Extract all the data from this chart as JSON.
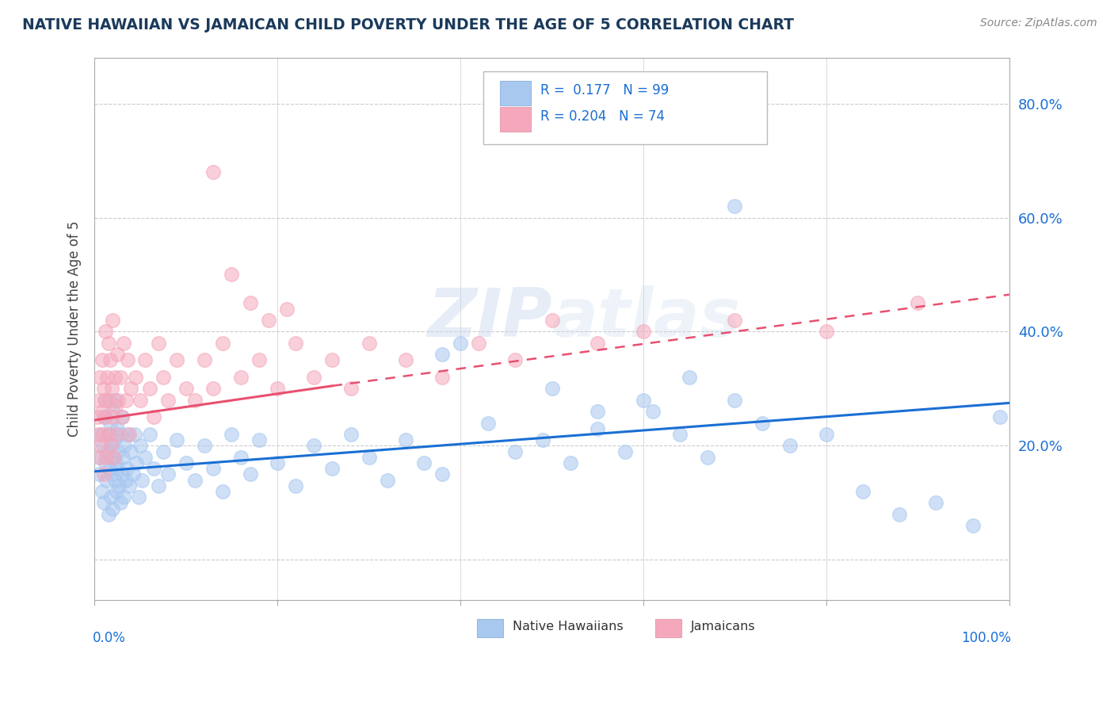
{
  "title": "NATIVE HAWAIIAN VS JAMAICAN CHILD POVERTY UNDER THE AGE OF 5 CORRELATION CHART",
  "source": "Source: ZipAtlas.com",
  "ylabel": "Child Poverty Under the Age of 5",
  "ytick_vals": [
    0.0,
    0.2,
    0.4,
    0.6,
    0.8
  ],
  "ytick_labels": [
    "",
    "20.0%",
    "40.0%",
    "60.0%",
    "80.0%"
  ],
  "xlim": [
    0.0,
    1.0
  ],
  "ylim": [
    -0.07,
    0.88
  ],
  "hawaiian_color": "#a8c8f0",
  "jamaican_color": "#f5a8bc",
  "trend_hawaiian_color": "#1a6fd4",
  "trend_jamaican_color": "#e85070",
  "background_color": "#ffffff",
  "grid_color": "#cccccc",
  "title_color": "#1a3a5c",
  "axis_label_color": "#1a6fd4",
  "trend_h_x0": 0.0,
  "trend_h_x1": 1.0,
  "trend_h_y0": 0.155,
  "trend_h_y1": 0.275,
  "trend_j_x0": 0.0,
  "trend_j_x1": 0.26,
  "trend_j_y0": 0.245,
  "trend_j_y1": 0.305,
  "trend_jd_x0": 0.26,
  "trend_jd_x1": 1.0,
  "trend_jd_y0": 0.305,
  "trend_jd_y1": 0.465,
  "hawaiian_x": [
    0.005,
    0.005,
    0.007,
    0.008,
    0.009,
    0.01,
    0.01,
    0.012,
    0.012,
    0.013,
    0.014,
    0.015,
    0.015,
    0.016,
    0.017,
    0.018,
    0.018,
    0.019,
    0.02,
    0.02,
    0.02,
    0.021,
    0.022,
    0.022,
    0.023,
    0.024,
    0.025,
    0.025,
    0.026,
    0.027,
    0.028,
    0.028,
    0.03,
    0.03,
    0.031,
    0.032,
    0.033,
    0.034,
    0.035,
    0.036,
    0.038,
    0.04,
    0.042,
    0.044,
    0.046,
    0.048,
    0.05,
    0.052,
    0.055,
    0.06,
    0.065,
    0.07,
    0.075,
    0.08,
    0.09,
    0.1,
    0.11,
    0.12,
    0.13,
    0.14,
    0.15,
    0.16,
    0.17,
    0.18,
    0.2,
    0.22,
    0.24,
    0.26,
    0.28,
    0.3,
    0.32,
    0.34,
    0.36,
    0.38,
    0.4,
    0.43,
    0.46,
    0.49,
    0.52,
    0.55,
    0.58,
    0.61,
    0.64,
    0.67,
    0.7,
    0.73,
    0.76,
    0.8,
    0.84,
    0.88,
    0.92,
    0.96,
    0.99,
    0.5,
    0.55,
    0.6,
    0.65,
    0.7,
    0.38
  ],
  "hawaiian_y": [
    0.18,
    0.15,
    0.22,
    0.12,
    0.2,
    0.25,
    0.1,
    0.17,
    0.28,
    0.14,
    0.19,
    0.22,
    0.08,
    0.16,
    0.24,
    0.11,
    0.2,
    0.15,
    0.18,
    0.26,
    0.09,
    0.21,
    0.14,
    0.28,
    0.17,
    0.12,
    0.23,
    0.16,
    0.19,
    0.13,
    0.22,
    0.1,
    0.25,
    0.15,
    0.18,
    0.11,
    0.2,
    0.14,
    0.16,
    0.22,
    0.13,
    0.19,
    0.15,
    0.22,
    0.17,
    0.11,
    0.2,
    0.14,
    0.18,
    0.22,
    0.16,
    0.13,
    0.19,
    0.15,
    0.21,
    0.17,
    0.14,
    0.2,
    0.16,
    0.12,
    0.22,
    0.18,
    0.15,
    0.21,
    0.17,
    0.13,
    0.2,
    0.16,
    0.22,
    0.18,
    0.14,
    0.21,
    0.17,
    0.15,
    0.38,
    0.24,
    0.19,
    0.21,
    0.17,
    0.23,
    0.19,
    0.26,
    0.22,
    0.18,
    0.62,
    0.24,
    0.2,
    0.22,
    0.12,
    0.08,
    0.1,
    0.06,
    0.25,
    0.3,
    0.26,
    0.28,
    0.32,
    0.28,
    0.36
  ],
  "jamaican_x": [
    0.003,
    0.004,
    0.005,
    0.006,
    0.006,
    0.007,
    0.008,
    0.008,
    0.009,
    0.01,
    0.01,
    0.011,
    0.012,
    0.012,
    0.013,
    0.014,
    0.015,
    0.015,
    0.016,
    0.017,
    0.018,
    0.019,
    0.02,
    0.02,
    0.021,
    0.022,
    0.023,
    0.024,
    0.025,
    0.026,
    0.028,
    0.03,
    0.032,
    0.034,
    0.036,
    0.038,
    0.04,
    0.045,
    0.05,
    0.055,
    0.06,
    0.065,
    0.07,
    0.075,
    0.08,
    0.09,
    0.1,
    0.11,
    0.12,
    0.13,
    0.14,
    0.16,
    0.18,
    0.2,
    0.22,
    0.24,
    0.26,
    0.28,
    0.3,
    0.34,
    0.38,
    0.42,
    0.46,
    0.5,
    0.55,
    0.6,
    0.7,
    0.8,
    0.9,
    0.13,
    0.15,
    0.17,
    0.19,
    0.21
  ],
  "jamaican_y": [
    0.25,
    0.22,
    0.28,
    0.18,
    0.32,
    0.2,
    0.26,
    0.35,
    0.22,
    0.3,
    0.15,
    0.28,
    0.25,
    0.4,
    0.18,
    0.32,
    0.22,
    0.38,
    0.28,
    0.35,
    0.2,
    0.3,
    0.25,
    0.42,
    0.18,
    0.32,
    0.27,
    0.22,
    0.36,
    0.28,
    0.32,
    0.25,
    0.38,
    0.28,
    0.35,
    0.22,
    0.3,
    0.32,
    0.28,
    0.35,
    0.3,
    0.25,
    0.38,
    0.32,
    0.28,
    0.35,
    0.3,
    0.28,
    0.35,
    0.3,
    0.38,
    0.32,
    0.35,
    0.3,
    0.38,
    0.32,
    0.35,
    0.3,
    0.38,
    0.35,
    0.32,
    0.38,
    0.35,
    0.42,
    0.38,
    0.4,
    0.42,
    0.4,
    0.45,
    0.68,
    0.5,
    0.45,
    0.42,
    0.44
  ]
}
